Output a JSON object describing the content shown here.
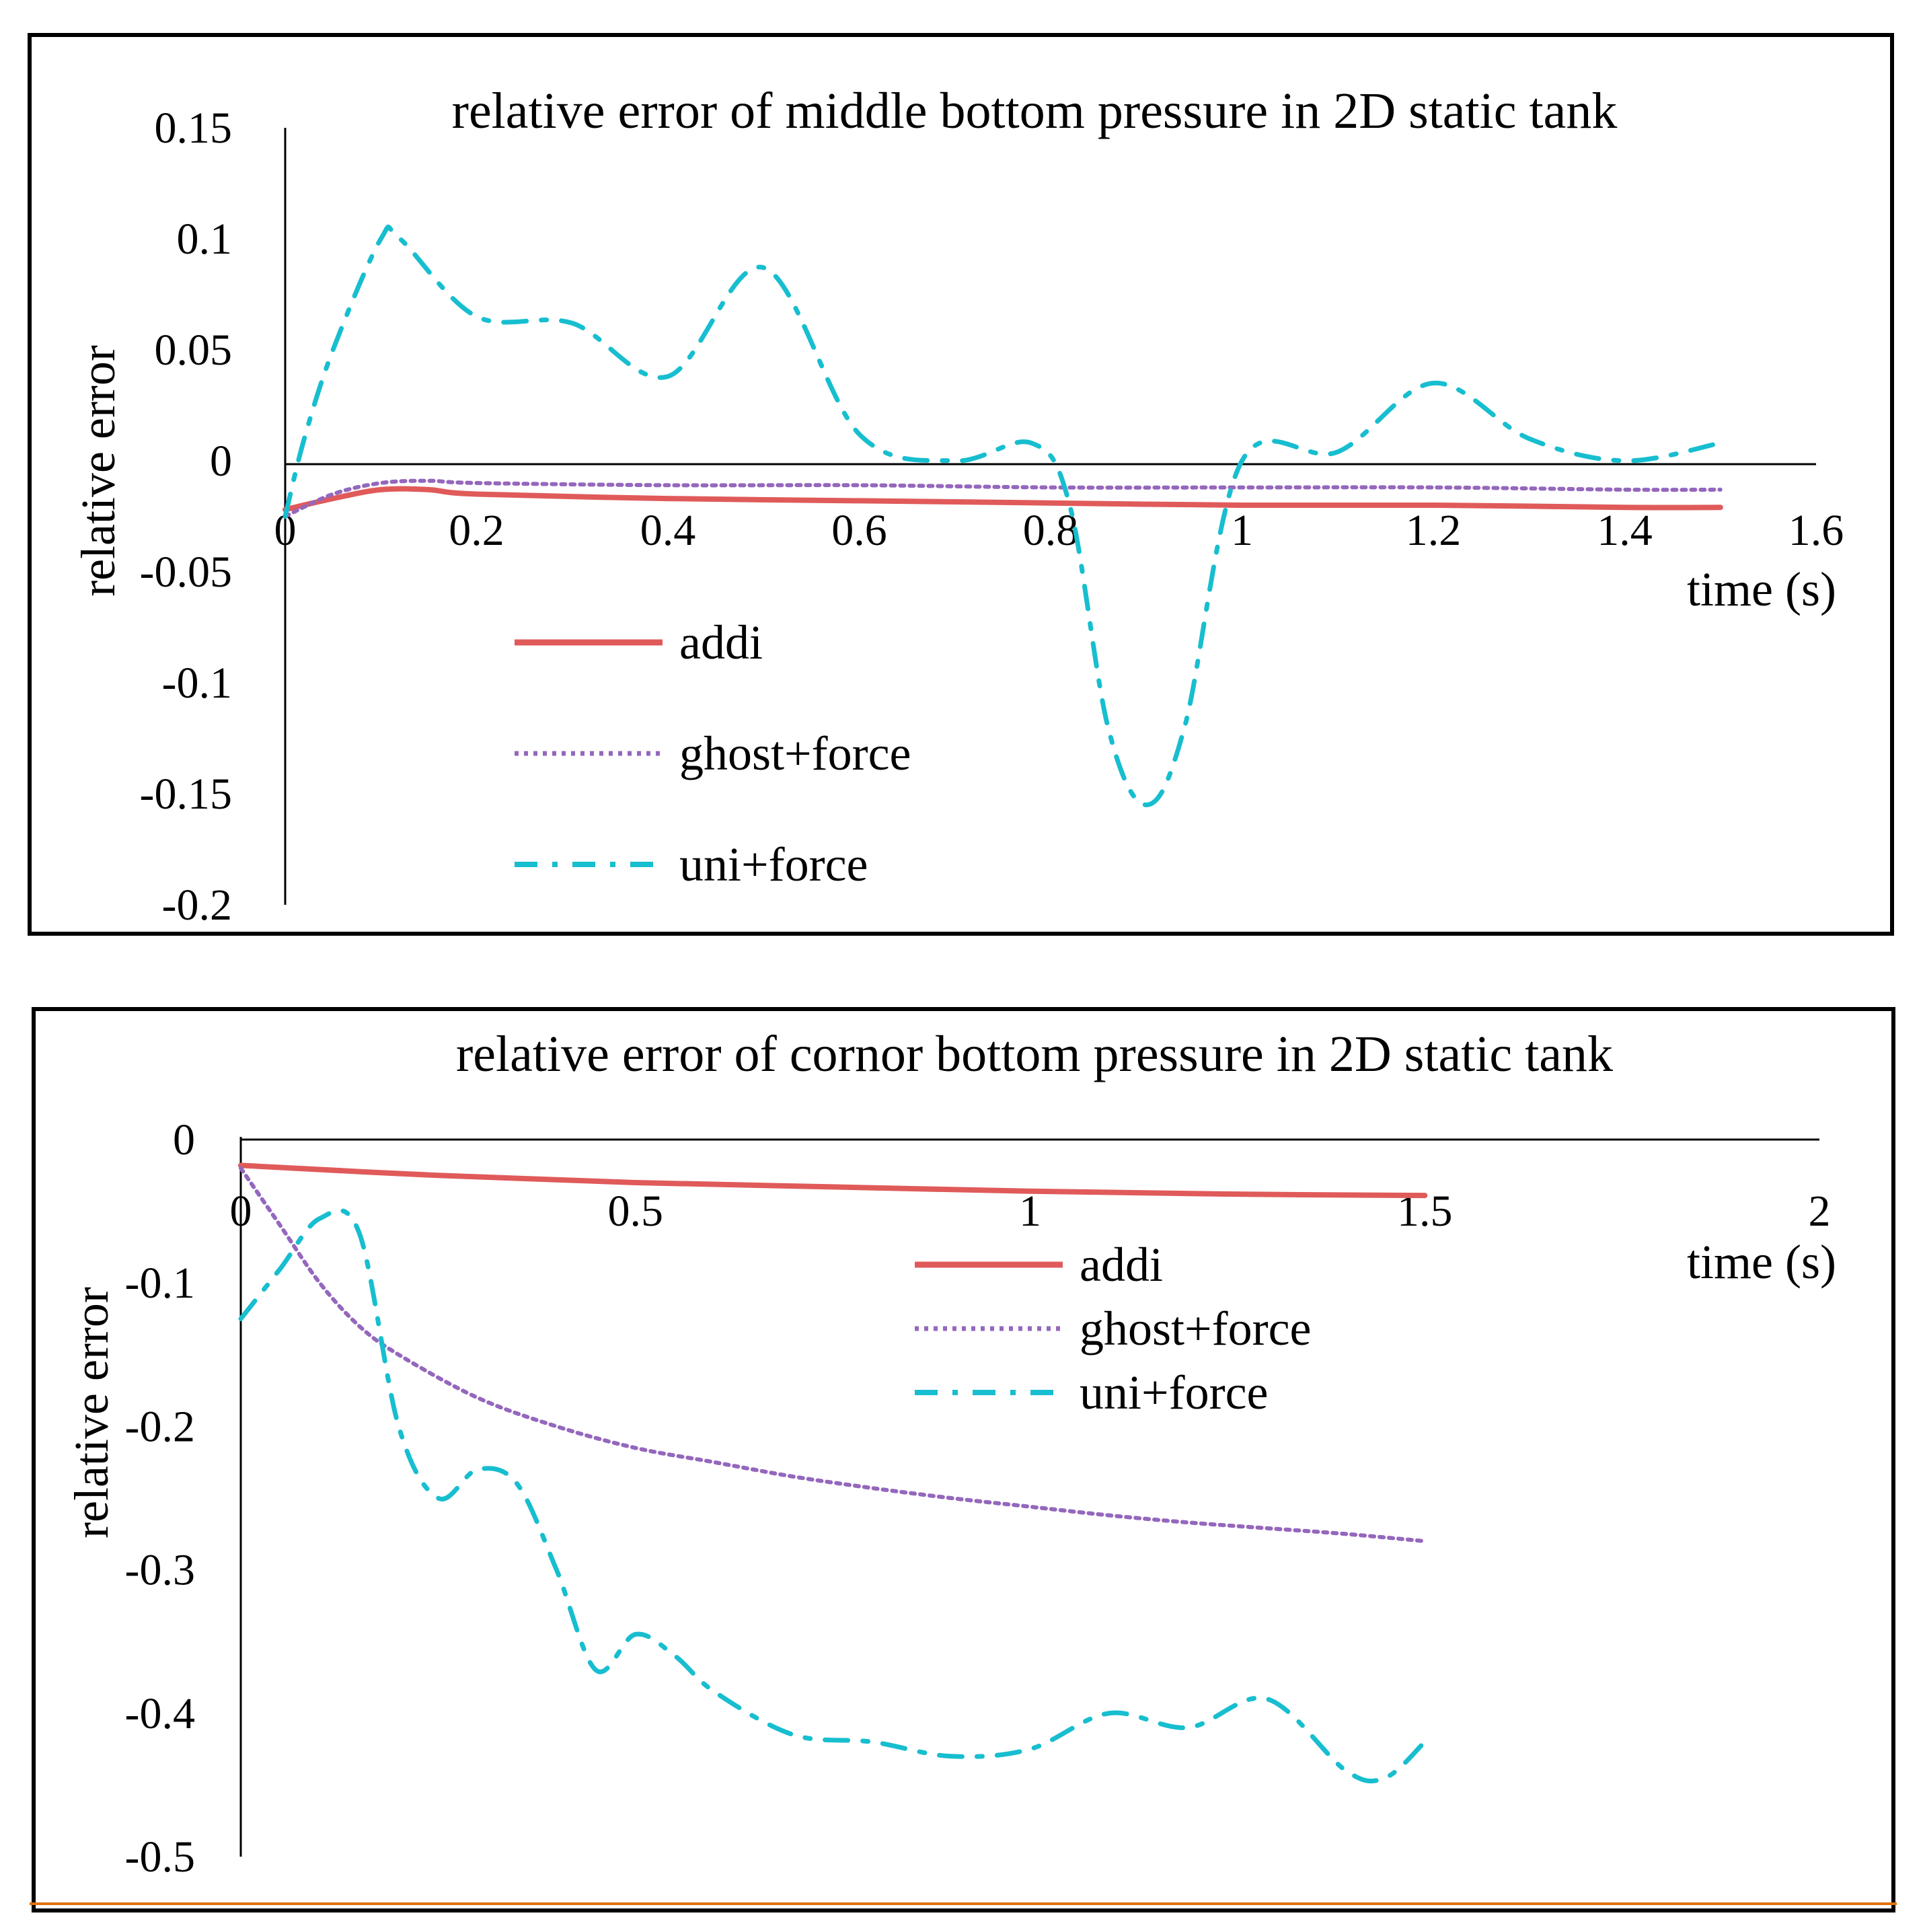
{
  "chart_data": [
    {
      "type": "line",
      "title": "relative error of middle bottom pressure in 2D static tank",
      "xlabel": "time (s)",
      "ylabel": "relative error",
      "xlim": [
        0,
        1.6
      ],
      "ylim": [
        -0.2,
        0.15
      ],
      "xticks": [
        0,
        0.2,
        0.4,
        0.6,
        0.8,
        1,
        1.2,
        1.4,
        1.6
      ],
      "xtick_labels": [
        "0",
        "0.2",
        "0.4",
        "0.6",
        "0.8",
        "1",
        "1.2",
        "1.4",
        "1.6"
      ],
      "yticks": [
        0.15,
        0.1,
        0.05,
        0,
        -0.05,
        -0.1,
        -0.15,
        -0.2
      ],
      "ytick_labels": [
        "0.15",
        "0.1",
        "0.05",
        "0",
        "-0.05",
        "-0.1",
        "-0.15",
        "-0.2"
      ],
      "legend_position": "lower-left",
      "series": [
        {
          "name": "addi",
          "style": "solid",
          "color": "#E05A5A",
          "x": [
            0,
            0.05,
            0.1,
            0.15,
            0.2,
            0.4,
            0.6,
            0.8,
            1.0,
            1.2,
            1.4,
            1.5
          ],
          "y": [
            -0.022,
            -0.017,
            -0.013,
            -0.013,
            -0.015,
            -0.017,
            -0.018,
            -0.019,
            -0.02,
            -0.02,
            -0.021,
            -0.021
          ]
        },
        {
          "name": "ghost+force",
          "style": "dotted",
          "color": "#9467BD",
          "x": [
            0,
            0.05,
            0.1,
            0.15,
            0.2,
            0.4,
            0.6,
            0.8,
            1.0,
            1.2,
            1.4,
            1.5
          ],
          "y": [
            -0.025,
            -0.015,
            -0.01,
            -0.009,
            -0.01,
            -0.011,
            -0.011,
            -0.012,
            -0.012,
            -0.012,
            -0.013,
            -0.013
          ]
        },
        {
          "name": "uni+force",
          "style": "dash-dot",
          "color": "#17BECF",
          "x": [
            0,
            0.02,
            0.05,
            0.1,
            0.12,
            0.2,
            0.3,
            0.4,
            0.5,
            0.6,
            0.7,
            0.78,
            0.82,
            0.86,
            0.9,
            0.94,
            1.0,
            1.1,
            1.2,
            1.3,
            1.4,
            1.5
          ],
          "y": [
            -0.025,
            0.01,
            0.05,
            0.1,
            0.1,
            0.065,
            0.062,
            0.038,
            0.087,
            0.012,
            0.0,
            0.008,
            -0.02,
            -0.12,
            -0.155,
            -0.12,
            0.0,
            0.004,
            0.035,
            0.01,
            0.0,
            0.008
          ]
        }
      ]
    },
    {
      "type": "line",
      "title": "relative error of cornor bottom pressure in 2D static tank",
      "xlabel": "time (s)",
      "ylabel": "relative error",
      "xlim": [
        0,
        2
      ],
      "ylim": [
        -0.5,
        0
      ],
      "xticks": [
        0,
        0.5,
        1,
        1.5,
        2
      ],
      "xtick_labels": [
        "0",
        "0.5",
        "1",
        "1.5",
        "2"
      ],
      "yticks": [
        0,
        -0.1,
        -0.2,
        -0.3,
        -0.4,
        -0.5
      ],
      "ytick_labels": [
        "0",
        "-0.1",
        "-0.2",
        "-0.3",
        "-0.4",
        "-0.5"
      ],
      "legend_position": "top-center",
      "series": [
        {
          "name": "addi",
          "style": "solid",
          "color": "#E05A5A",
          "x": [
            0,
            0.25,
            0.5,
            0.75,
            1.0,
            1.25,
            1.5
          ],
          "y": [
            -0.018,
            -0.025,
            -0.03,
            -0.033,
            -0.036,
            -0.038,
            -0.039
          ]
        },
        {
          "name": "ghost+force",
          "style": "dotted",
          "color": "#9467BD",
          "x": [
            0,
            0.05,
            0.1,
            0.15,
            0.2,
            0.3,
            0.4,
            0.5,
            0.6,
            0.7,
            0.8,
            0.9,
            1.0,
            1.1,
            1.2,
            1.3,
            1.4,
            1.5
          ],
          "y": [
            -0.02,
            -0.06,
            -0.1,
            -0.13,
            -0.15,
            -0.18,
            -0.2,
            -0.215,
            -0.225,
            -0.235,
            -0.243,
            -0.25,
            -0.256,
            -0.262,
            -0.267,
            -0.271,
            -0.275,
            -0.28
          ]
        },
        {
          "name": "uni+force",
          "style": "dash-dot",
          "color": "#17BECF",
          "x": [
            0,
            0.05,
            0.1,
            0.15,
            0.2,
            0.25,
            0.3,
            0.35,
            0.4,
            0.45,
            0.5,
            0.55,
            0.6,
            0.7,
            0.8,
            0.9,
            1.0,
            1.1,
            1.2,
            1.3,
            1.4,
            1.45,
            1.5
          ],
          "y": [
            -0.125,
            -0.09,
            -0.055,
            -0.065,
            -0.2,
            -0.25,
            -0.23,
            -0.24,
            -0.3,
            -0.37,
            -0.345,
            -0.36,
            -0.385,
            -0.415,
            -0.42,
            -0.43,
            -0.425,
            -0.4,
            -0.41,
            -0.39,
            -0.44,
            -0.445,
            -0.42
          ]
        }
      ]
    }
  ]
}
